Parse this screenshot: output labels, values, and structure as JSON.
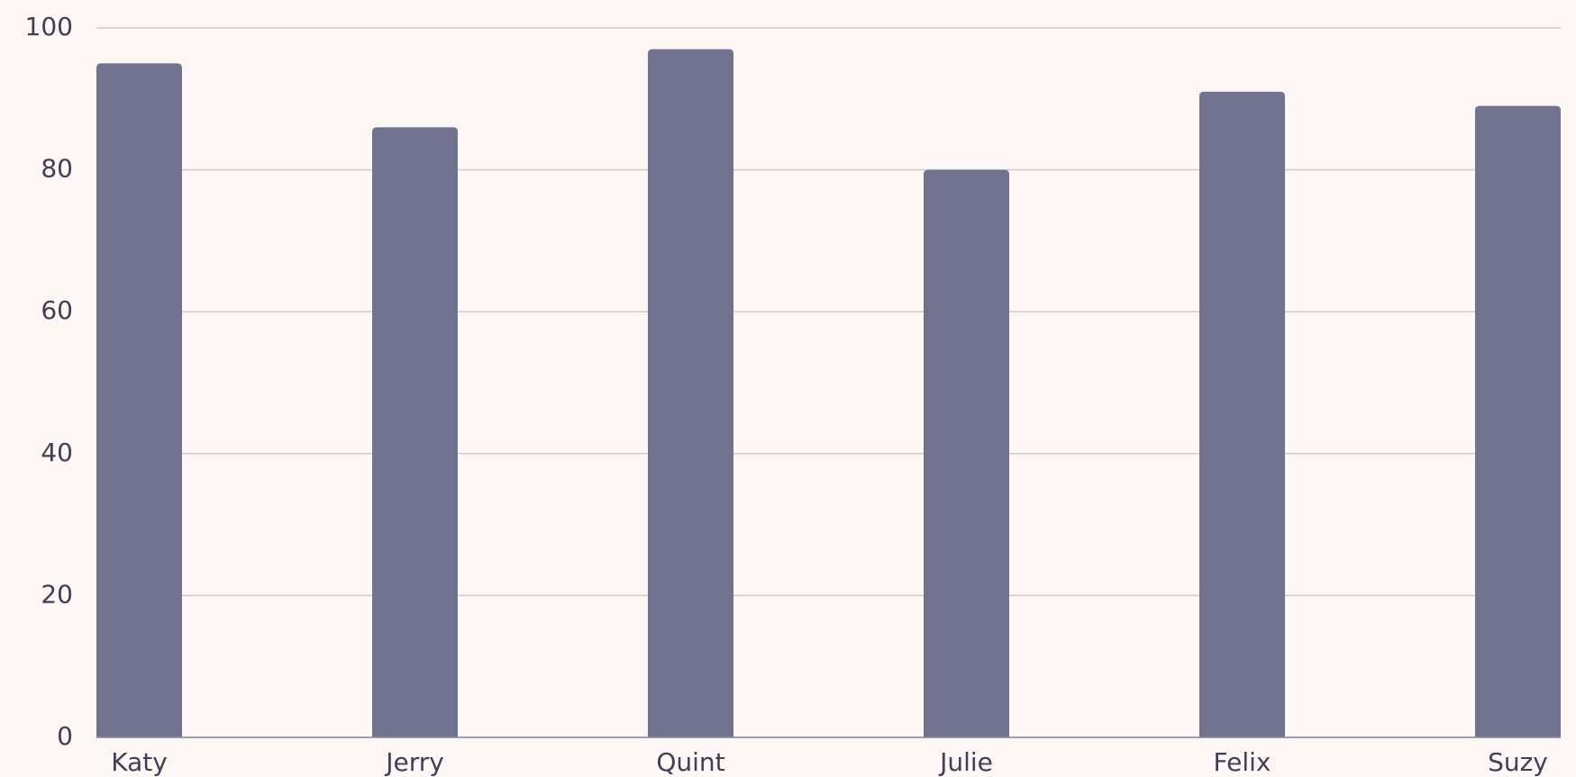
{
  "chart_data": {
    "type": "bar",
    "categories": [
      "Katy",
      "Jerry",
      "Quint",
      "Julie",
      "Felix",
      "Suzy"
    ],
    "values": [
      95,
      86,
      97,
      80,
      91,
      89
    ],
    "color": "#717190",
    "ylim": [
      0,
      100
    ],
    "yticks": [
      0,
      20,
      40,
      60,
      80,
      100
    ],
    "grid": true
  }
}
